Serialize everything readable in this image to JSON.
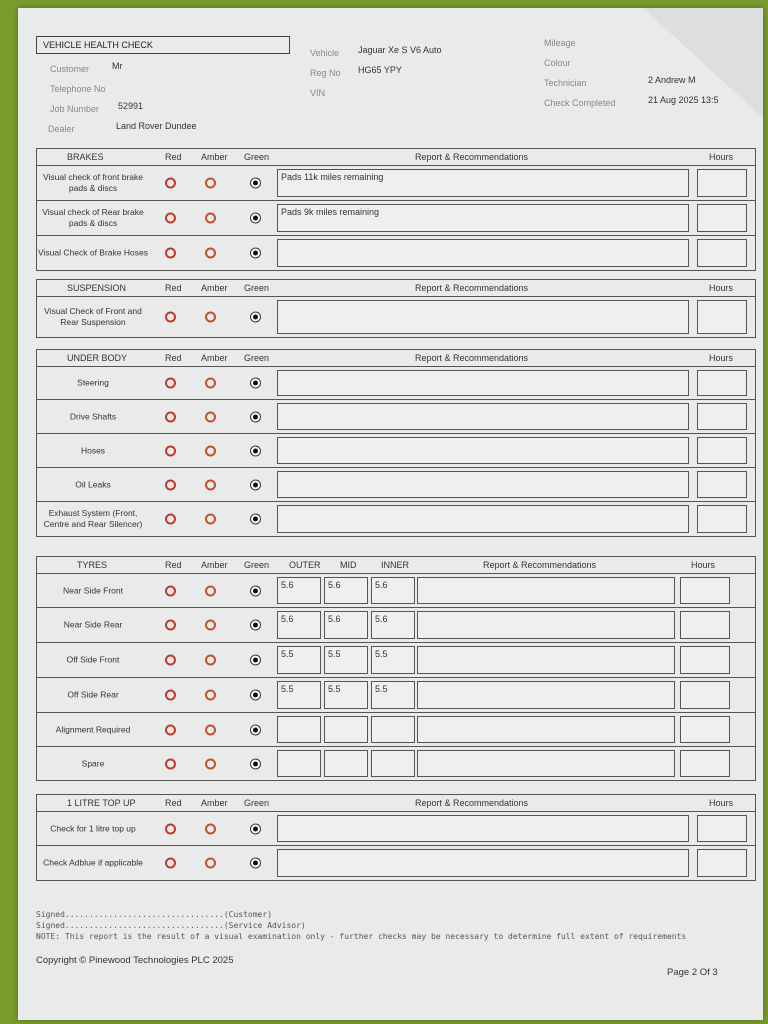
{
  "header": {
    "title": "VEHICLE HEALTH CHECK",
    "fields": [
      {
        "label": "Customer",
        "value": "Mr"
      },
      {
        "label": "Telephone No",
        "value": ""
      },
      {
        "label": "Job Number",
        "value": "52991"
      },
      {
        "label": "Dealer",
        "value": "Land Rover Dundee"
      },
      {
        "label": "Vehicle",
        "value": "Jaguar Xe S V6 Auto"
      },
      {
        "label": "Reg No",
        "value": "HG65 YPY"
      },
      {
        "label": "VIN",
        "value": ""
      },
      {
        "label": "Mileage",
        "value": ""
      },
      {
        "label": "Colour",
        "value": ""
      },
      {
        "label": "Technician",
        "value": "2 Andrew M"
      },
      {
        "label": "Check Completed",
        "value": "21 Aug 2025 13:5"
      }
    ]
  },
  "columns": {
    "red": "Red",
    "amber": "Amber",
    "green": "Green",
    "report": "Report & Recommendations",
    "hours": "Hours",
    "outer": "OUTER",
    "mid": "MID",
    "inner": "INNER"
  },
  "sections": [
    {
      "title": "BRAKES",
      "rows": [
        {
          "name": "Visual check of front brake pads & discs",
          "status": "green",
          "report": "Pads 11k miles remaining"
        },
        {
          "name": "Visual check of Rear brake pads & discs",
          "status": "green",
          "report": "Pads 9k miles remaining"
        },
        {
          "name": "Visual Check of Brake Hoses",
          "status": "green",
          "report": ""
        }
      ]
    },
    {
      "title": "SUSPENSION",
      "rows": [
        {
          "name": "Visual Check of Front and Rear Suspension",
          "status": "green",
          "report": ""
        }
      ]
    },
    {
      "title": "UNDER BODY",
      "rows": [
        {
          "name": "Steering",
          "status": "green",
          "report": ""
        },
        {
          "name": "Drive Shafts",
          "status": "green",
          "report": ""
        },
        {
          "name": "Hoses",
          "status": "green",
          "report": ""
        },
        {
          "name": "Oil Leaks",
          "status": "green",
          "report": ""
        },
        {
          "name": "Exhaust System (Front, Centre and Rear Silencer)",
          "status": "green",
          "report": ""
        }
      ]
    },
    {
      "title": "TYRES",
      "tyres": true,
      "rows": [
        {
          "name": "Near Side Front",
          "status": "green",
          "outer": "5.6",
          "mid": "5.6",
          "inner": "5.6",
          "report": ""
        },
        {
          "name": "Near Side Rear",
          "status": "green",
          "outer": "5.6",
          "mid": "5.6",
          "inner": "5.6",
          "report": ""
        },
        {
          "name": "Off Side Front",
          "status": "green",
          "outer": "5.5",
          "mid": "5.5",
          "inner": "5.5",
          "report": ""
        },
        {
          "name": "Off Side Rear",
          "status": "green",
          "outer": "5.5",
          "mid": "5.5",
          "inner": "5.5",
          "report": ""
        },
        {
          "name": "Alignment Required",
          "status": "green",
          "outer": "",
          "mid": "",
          "inner": "",
          "report": ""
        },
        {
          "name": "Spare",
          "status": "green",
          "outer": "",
          "mid": "",
          "inner": "",
          "report": ""
        }
      ]
    },
    {
      "title": "1 LITRE TOP UP",
      "rows": [
        {
          "name": "Check for 1 litre top up",
          "status": "green",
          "report": ""
        },
        {
          "name": "Check Adblue if applicable",
          "status": "green",
          "report": ""
        }
      ]
    }
  ],
  "footer": {
    "signed_customer": "Signed.................................(Customer)",
    "signed_advisor": "Signed.................................(Service Advisor)",
    "note": "NOTE: This report is the result of a visual examination only - further checks may be necessary to determine full extent of requirements",
    "copyright": "Copyright © Pinewood Technologies PLC 2025",
    "page": "Page 2 Of 3"
  }
}
